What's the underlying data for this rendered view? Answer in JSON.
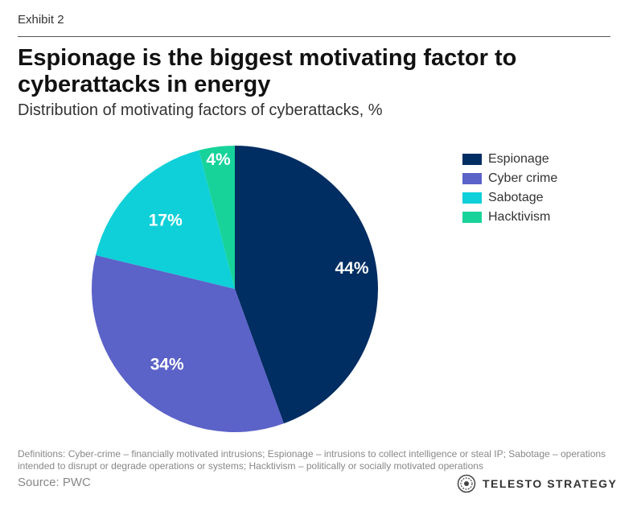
{
  "header": {
    "exhibit": "Exhibit 2",
    "title": "Espionage is the biggest motivating factor to cyberattacks in energy",
    "subtitle": "Distribution of motivating factors of cyberattacks, %"
  },
  "chart_data": {
    "type": "pie",
    "categories": [
      "Espionage",
      "Cyber crime",
      "Sabotage",
      "Hacktivism"
    ],
    "values": [
      44,
      34,
      17,
      4
    ],
    "labels": [
      "44%",
      "34%",
      "17%",
      "4%"
    ],
    "colors": [
      "#002d62",
      "#5b62c8",
      "#0fd0d8",
      "#17d39a"
    ],
    "start": "12 o'clock",
    "direction": "clockwise",
    "legend_placement": "right"
  },
  "footer": {
    "definitions": "Definitions: Cyber-crime – financially motivated intrusions; Espionage – intrusions to collect intelligence or steal IP; Sabotage – operations intended to disrupt or degrade operations or systems; Hacktivism – politically or socially motivated operations",
    "source": "Source: PWC",
    "brand": "TELESTO STRATEGY",
    "brand_icon": "telesto-logo-icon"
  }
}
